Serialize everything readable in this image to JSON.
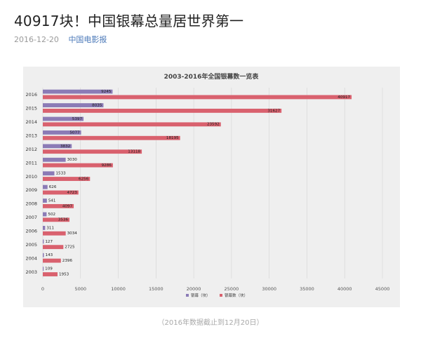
{
  "article": {
    "headline": "40917块！中国银幕总量居世界第一",
    "date": "2016-12-20",
    "source": "中国电影报"
  },
  "caption": "（2016年数据截止到12月20日）",
  "colors": {
    "series_1": "#8b7bb6",
    "series_2": "#d9616e",
    "background": "#efefef",
    "grid": "#d4d4d4"
  },
  "chart_data": {
    "type": "bar",
    "orientation": "horizontal",
    "title": "2003-2016年全国银幕数一览表",
    "categories": [
      "2016",
      "2015",
      "2014",
      "2013",
      "2012",
      "2011",
      "2010",
      "2009",
      "2008",
      "2007",
      "2006",
      "2005",
      "2004",
      "2003"
    ],
    "series": [
      {
        "name": "银幕（块）",
        "values": [
          9245,
          8035,
          5397,
          5077,
          3832,
          3030,
          1533,
          626,
          541,
          502,
          311,
          127,
          143,
          109
        ]
      },
      {
        "name": "银幕数（块）",
        "values": [
          40917,
          31627,
          23592,
          18195,
          13118,
          9286,
          6256,
          4723,
          4097,
          3536,
          3034,
          2725,
          2396,
          1953
        ]
      }
    ],
    "xlim": [
      0,
      45000
    ],
    "xticks": [
      0,
      5000,
      10000,
      15000,
      20000,
      25000,
      30000,
      35000,
      40000,
      45000
    ],
    "xlabel": "",
    "ylabel": "",
    "grid": true,
    "legend_position": "bottom"
  }
}
